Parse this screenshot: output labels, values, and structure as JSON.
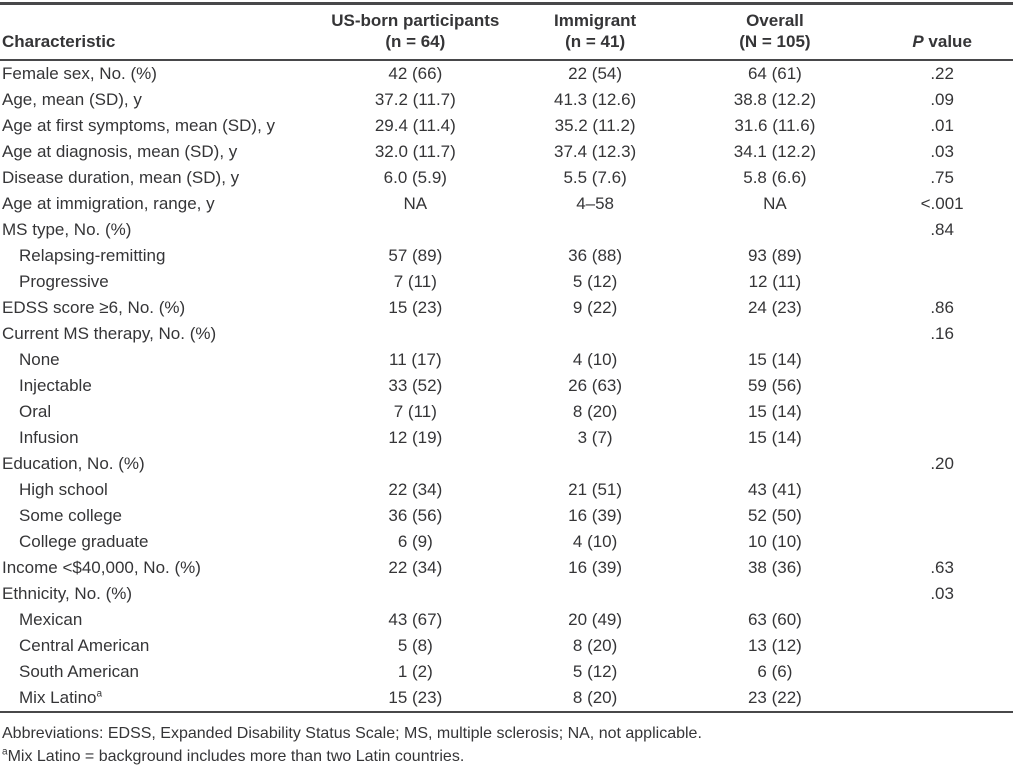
{
  "table": {
    "header": {
      "characteristic": "Characteristic",
      "us_born": {
        "line1": "US-born participants",
        "line2": "(n = 64)"
      },
      "immigrant": {
        "line1": "Immigrant",
        "line2": "(n = 41)"
      },
      "overall": {
        "line1": "Overall",
        "line2": "(N = 105)"
      },
      "p_value": {
        "italic": "P",
        "rest": " value"
      }
    },
    "rows": [
      {
        "label": "Female sex, No. (%)",
        "indent": false,
        "us_born": "42 (66)",
        "immigrant": "22 (54)",
        "overall": "64 (61)",
        "p_value": ".22"
      },
      {
        "label": "Age, mean (SD), y",
        "indent": false,
        "us_born": "37.2 (11.7)",
        "immigrant": "41.3 (12.6)",
        "overall": "38.8 (12.2)",
        "p_value": ".09"
      },
      {
        "label": "Age at first symptoms, mean (SD), y",
        "indent": false,
        "us_born": "29.4 (11.4)",
        "immigrant": "35.2 (11.2)",
        "overall": "31.6 (11.6)",
        "p_value": ".01"
      },
      {
        "label": "Age at diagnosis, mean (SD), y",
        "indent": false,
        "us_born": "32.0 (11.7)",
        "immigrant": "37.4 (12.3)",
        "overall": "34.1 (12.2)",
        "p_value": ".03"
      },
      {
        "label": "Disease duration, mean (SD), y",
        "indent": false,
        "us_born": "6.0 (5.9)",
        "immigrant": "5.5 (7.6)",
        "overall": "5.8 (6.6)",
        "p_value": ".75"
      },
      {
        "label": "Age at immigration, range, y",
        "indent": false,
        "us_born": "NA",
        "immigrant": "4–58",
        "overall": "NA",
        "p_value": "<.001"
      },
      {
        "label": "MS type, No. (%)",
        "indent": false,
        "us_born": "",
        "immigrant": "",
        "overall": "",
        "p_value": ".84"
      },
      {
        "label": "Relapsing-remitting",
        "indent": true,
        "us_born": "57 (89)",
        "immigrant": "36 (88)",
        "overall": "93 (89)",
        "p_value": ""
      },
      {
        "label": "Progressive",
        "indent": true,
        "us_born": "7 (11)",
        "immigrant": "5 (12)",
        "overall": "12 (11)",
        "p_value": ""
      },
      {
        "label": "EDSS score ≥6, No. (%)",
        "indent": false,
        "us_born": "15 (23)",
        "immigrant": "9 (22)",
        "overall": "24 (23)",
        "p_value": ".86"
      },
      {
        "label": "Current MS therapy, No. (%)",
        "indent": false,
        "us_born": "",
        "immigrant": "",
        "overall": "",
        "p_value": ".16"
      },
      {
        "label": "None",
        "indent": true,
        "us_born": "11 (17)",
        "immigrant": "4 (10)",
        "overall": "15 (14)",
        "p_value": ""
      },
      {
        "label": "Injectable",
        "indent": true,
        "us_born": "33 (52)",
        "immigrant": "26 (63)",
        "overall": "59 (56)",
        "p_value": ""
      },
      {
        "label": "Oral",
        "indent": true,
        "us_born": "7 (11)",
        "immigrant": "8 (20)",
        "overall": "15 (14)",
        "p_value": ""
      },
      {
        "label": "Infusion",
        "indent": true,
        "us_born": "12 (19)",
        "immigrant": "3 (7)",
        "overall": "15 (14)",
        "p_value": ""
      },
      {
        "label": "Education, No. (%)",
        "indent": false,
        "us_born": "",
        "immigrant": "",
        "overall": "",
        "p_value": ".20"
      },
      {
        "label": "High school",
        "indent": true,
        "us_born": "22 (34)",
        "immigrant": "21 (51)",
        "overall": "43 (41)",
        "p_value": ""
      },
      {
        "label": "Some college",
        "indent": true,
        "us_born": "36 (56)",
        "immigrant": "16 (39)",
        "overall": "52 (50)",
        "p_value": ""
      },
      {
        "label": "College graduate",
        "indent": true,
        "us_born": "6 (9)",
        "immigrant": "4 (10)",
        "overall": "10 (10)",
        "p_value": ""
      },
      {
        "label": "Income <$40,000, No. (%)",
        "indent": false,
        "us_born": "22 (34)",
        "immigrant": "16 (39)",
        "overall": "38 (36)",
        "p_value": ".63"
      },
      {
        "label": "Ethnicity, No. (%)",
        "indent": false,
        "us_born": "",
        "immigrant": "",
        "overall": "",
        "p_value": ".03"
      },
      {
        "label": "Mexican",
        "indent": true,
        "us_born": "43 (67)",
        "immigrant": "20 (49)",
        "overall": "63 (60)",
        "p_value": ""
      },
      {
        "label": "Central American",
        "indent": true,
        "us_born": "5 (8)",
        "immigrant": "8 (20)",
        "overall": "13 (12)",
        "p_value": ""
      },
      {
        "label": "South American",
        "indent": true,
        "us_born": "1 (2)",
        "immigrant": "5 (12)",
        "overall": "6 (6)",
        "p_value": ""
      },
      {
        "label": "Mix Latino",
        "sup": "a",
        "indent": true,
        "us_born": "15 (23)",
        "immigrant": "8 (20)",
        "overall": "23 (22)",
        "p_value": ""
      }
    ]
  },
  "footnotes": {
    "abbreviations": "Abbreviations: EDSS, Expanded Disability Status Scale; MS, multiple sclerosis; NA, not applicable.",
    "note_sup": "a",
    "note_text": "Mix Latino = background includes more than two Latin countries."
  },
  "colors": {
    "rule": "#48484a",
    "text": "#353537",
    "background": "#ffffff"
  }
}
